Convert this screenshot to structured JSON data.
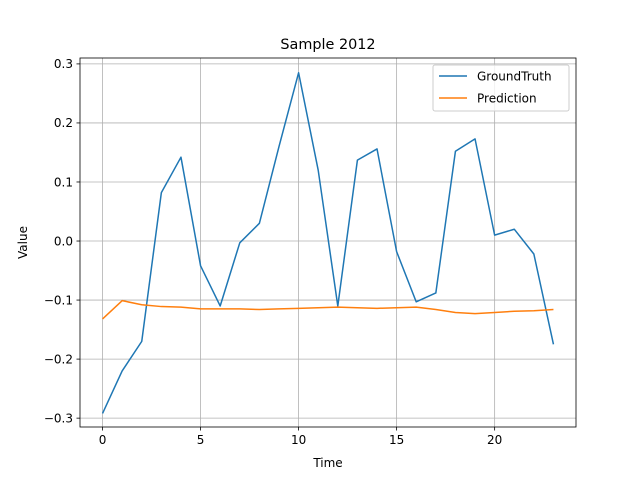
{
  "chart_data": {
    "type": "line",
    "title": "Sample 2012",
    "xlabel": "Time",
    "ylabel": "Value",
    "xlim": [
      -1.15,
      24.15
    ],
    "ylim": [
      -0.315,
      0.31
    ],
    "xticks": [
      0,
      5,
      10,
      15,
      20
    ],
    "xtick_labels": [
      "0",
      "5",
      "10",
      "15",
      "20"
    ],
    "yticks": [
      -0.3,
      -0.2,
      -0.1,
      0.0,
      0.1,
      0.2,
      0.3
    ],
    "ytick_labels": [
      "−0.3",
      "−0.2",
      "−0.1",
      "0.0",
      "0.1",
      "0.2",
      "0.3"
    ],
    "grid": true,
    "legend_position": "top-right",
    "x": [
      0,
      1,
      2,
      3,
      4,
      5,
      6,
      7,
      8,
      9,
      10,
      11,
      12,
      13,
      14,
      15,
      16,
      17,
      18,
      19,
      20,
      21,
      22,
      23
    ],
    "series": [
      {
        "name": "GroundTruth",
        "color": "#1f77b4",
        "values": [
          -0.292,
          -0.22,
          -0.17,
          0.082,
          0.142,
          -0.042,
          -0.11,
          -0.003,
          0.03,
          0.16,
          0.285,
          0.12,
          -0.11,
          0.137,
          0.156,
          -0.018,
          -0.103,
          -0.088,
          0.152,
          0.173,
          0.01,
          0.02,
          -0.022,
          -0.175
        ]
      },
      {
        "name": "Prediction",
        "color": "#ff7f0e",
        "values": [
          -0.132,
          -0.101,
          -0.108,
          -0.111,
          -0.112,
          -0.115,
          -0.115,
          -0.115,
          -0.116,
          -0.115,
          -0.114,
          -0.113,
          -0.112,
          -0.113,
          -0.114,
          -0.113,
          -0.112,
          -0.116,
          -0.121,
          -0.123,
          -0.121,
          -0.119,
          -0.118,
          -0.116
        ]
      }
    ]
  }
}
